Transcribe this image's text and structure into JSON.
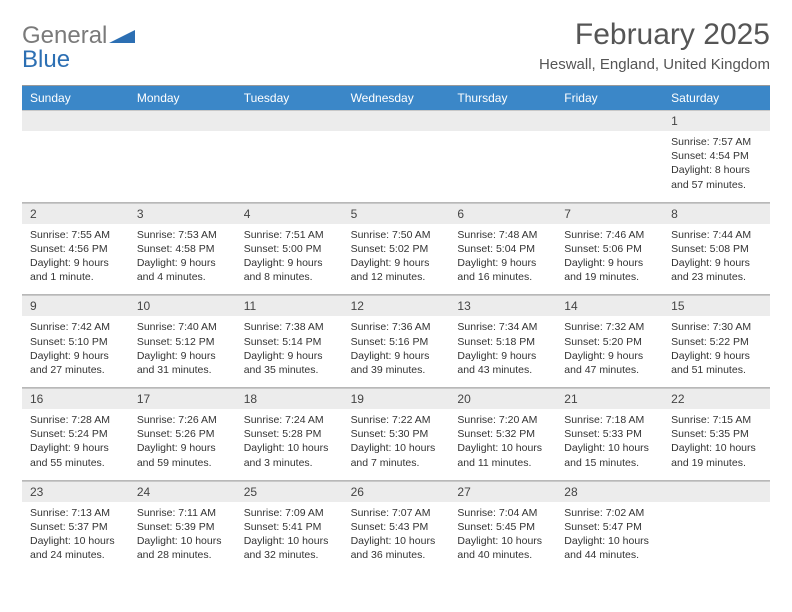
{
  "logo": {
    "word1": "General",
    "word2": "Blue"
  },
  "title": "February 2025",
  "location": "Heswall, England, United Kingdom",
  "day_headers": [
    "Sunday",
    "Monday",
    "Tuesday",
    "Wednesday",
    "Thursday",
    "Friday",
    "Saturday"
  ],
  "colors": {
    "header_bg": "#3b87c8",
    "header_text": "#ffffff",
    "daynum_bg": "#ececec",
    "border": "#c8c8c8",
    "logo_gray": "#7a7a7a",
    "logo_blue": "#2c6fb3"
  },
  "weeks": [
    {
      "nums": [
        "",
        "",
        "",
        "",
        "",
        "",
        "1"
      ],
      "cells": [
        {},
        {},
        {},
        {},
        {},
        {},
        {
          "sunrise": "Sunrise: 7:57 AM",
          "sunset": "Sunset: 4:54 PM",
          "day1": "Daylight: 8 hours",
          "day2": "and 57 minutes."
        }
      ]
    },
    {
      "nums": [
        "2",
        "3",
        "4",
        "5",
        "6",
        "7",
        "8"
      ],
      "cells": [
        {
          "sunrise": "Sunrise: 7:55 AM",
          "sunset": "Sunset: 4:56 PM",
          "day1": "Daylight: 9 hours",
          "day2": "and 1 minute."
        },
        {
          "sunrise": "Sunrise: 7:53 AM",
          "sunset": "Sunset: 4:58 PM",
          "day1": "Daylight: 9 hours",
          "day2": "and 4 minutes."
        },
        {
          "sunrise": "Sunrise: 7:51 AM",
          "sunset": "Sunset: 5:00 PM",
          "day1": "Daylight: 9 hours",
          "day2": "and 8 minutes."
        },
        {
          "sunrise": "Sunrise: 7:50 AM",
          "sunset": "Sunset: 5:02 PM",
          "day1": "Daylight: 9 hours",
          "day2": "and 12 minutes."
        },
        {
          "sunrise": "Sunrise: 7:48 AM",
          "sunset": "Sunset: 5:04 PM",
          "day1": "Daylight: 9 hours",
          "day2": "and 16 minutes."
        },
        {
          "sunrise": "Sunrise: 7:46 AM",
          "sunset": "Sunset: 5:06 PM",
          "day1": "Daylight: 9 hours",
          "day2": "and 19 minutes."
        },
        {
          "sunrise": "Sunrise: 7:44 AM",
          "sunset": "Sunset: 5:08 PM",
          "day1": "Daylight: 9 hours",
          "day2": "and 23 minutes."
        }
      ]
    },
    {
      "nums": [
        "9",
        "10",
        "11",
        "12",
        "13",
        "14",
        "15"
      ],
      "cells": [
        {
          "sunrise": "Sunrise: 7:42 AM",
          "sunset": "Sunset: 5:10 PM",
          "day1": "Daylight: 9 hours",
          "day2": "and 27 minutes."
        },
        {
          "sunrise": "Sunrise: 7:40 AM",
          "sunset": "Sunset: 5:12 PM",
          "day1": "Daylight: 9 hours",
          "day2": "and 31 minutes."
        },
        {
          "sunrise": "Sunrise: 7:38 AM",
          "sunset": "Sunset: 5:14 PM",
          "day1": "Daylight: 9 hours",
          "day2": "and 35 minutes."
        },
        {
          "sunrise": "Sunrise: 7:36 AM",
          "sunset": "Sunset: 5:16 PM",
          "day1": "Daylight: 9 hours",
          "day2": "and 39 minutes."
        },
        {
          "sunrise": "Sunrise: 7:34 AM",
          "sunset": "Sunset: 5:18 PM",
          "day1": "Daylight: 9 hours",
          "day2": "and 43 minutes."
        },
        {
          "sunrise": "Sunrise: 7:32 AM",
          "sunset": "Sunset: 5:20 PM",
          "day1": "Daylight: 9 hours",
          "day2": "and 47 minutes."
        },
        {
          "sunrise": "Sunrise: 7:30 AM",
          "sunset": "Sunset: 5:22 PM",
          "day1": "Daylight: 9 hours",
          "day2": "and 51 minutes."
        }
      ]
    },
    {
      "nums": [
        "16",
        "17",
        "18",
        "19",
        "20",
        "21",
        "22"
      ],
      "cells": [
        {
          "sunrise": "Sunrise: 7:28 AM",
          "sunset": "Sunset: 5:24 PM",
          "day1": "Daylight: 9 hours",
          "day2": "and 55 minutes."
        },
        {
          "sunrise": "Sunrise: 7:26 AM",
          "sunset": "Sunset: 5:26 PM",
          "day1": "Daylight: 9 hours",
          "day2": "and 59 minutes."
        },
        {
          "sunrise": "Sunrise: 7:24 AM",
          "sunset": "Sunset: 5:28 PM",
          "day1": "Daylight: 10 hours",
          "day2": "and 3 minutes."
        },
        {
          "sunrise": "Sunrise: 7:22 AM",
          "sunset": "Sunset: 5:30 PM",
          "day1": "Daylight: 10 hours",
          "day2": "and 7 minutes."
        },
        {
          "sunrise": "Sunrise: 7:20 AM",
          "sunset": "Sunset: 5:32 PM",
          "day1": "Daylight: 10 hours",
          "day2": "and 11 minutes."
        },
        {
          "sunrise": "Sunrise: 7:18 AM",
          "sunset": "Sunset: 5:33 PM",
          "day1": "Daylight: 10 hours",
          "day2": "and 15 minutes."
        },
        {
          "sunrise": "Sunrise: 7:15 AM",
          "sunset": "Sunset: 5:35 PM",
          "day1": "Daylight: 10 hours",
          "day2": "and 19 minutes."
        }
      ]
    },
    {
      "nums": [
        "23",
        "24",
        "25",
        "26",
        "27",
        "28",
        ""
      ],
      "cells": [
        {
          "sunrise": "Sunrise: 7:13 AM",
          "sunset": "Sunset: 5:37 PM",
          "day1": "Daylight: 10 hours",
          "day2": "and 24 minutes."
        },
        {
          "sunrise": "Sunrise: 7:11 AM",
          "sunset": "Sunset: 5:39 PM",
          "day1": "Daylight: 10 hours",
          "day2": "and 28 minutes."
        },
        {
          "sunrise": "Sunrise: 7:09 AM",
          "sunset": "Sunset: 5:41 PM",
          "day1": "Daylight: 10 hours",
          "day2": "and 32 minutes."
        },
        {
          "sunrise": "Sunrise: 7:07 AM",
          "sunset": "Sunset: 5:43 PM",
          "day1": "Daylight: 10 hours",
          "day2": "and 36 minutes."
        },
        {
          "sunrise": "Sunrise: 7:04 AM",
          "sunset": "Sunset: 5:45 PM",
          "day1": "Daylight: 10 hours",
          "day2": "and 40 minutes."
        },
        {
          "sunrise": "Sunrise: 7:02 AM",
          "sunset": "Sunset: 5:47 PM",
          "day1": "Daylight: 10 hours",
          "day2": "and 44 minutes."
        },
        {}
      ]
    }
  ]
}
